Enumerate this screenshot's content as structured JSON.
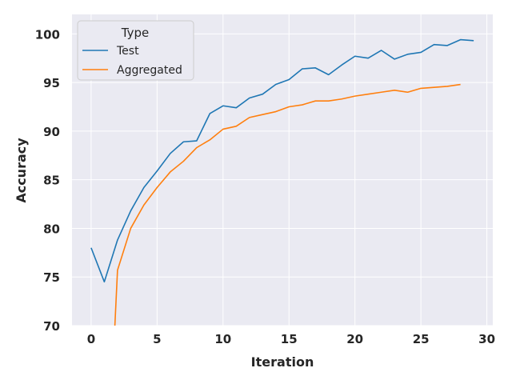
{
  "chart_data": {
    "type": "line",
    "xlabel": "Iteration",
    "ylabel": "Accuracy",
    "xlim": [
      -1.45,
      30.45
    ],
    "ylim": [
      70,
      102
    ],
    "xticks": [
      0,
      5,
      10,
      15,
      20,
      25,
      30
    ],
    "yticks": [
      70,
      75,
      80,
      85,
      90,
      95,
      100
    ],
    "grid": true,
    "legend": {
      "title": "Type",
      "placement": "top-left"
    },
    "series": [
      {
        "name": "Test",
        "color": "#1f77b4",
        "x": [
          0,
          1,
          2,
          3,
          4,
          5,
          6,
          7,
          8,
          9,
          10,
          11,
          12,
          13,
          14,
          15,
          16,
          17,
          18,
          19,
          20,
          21,
          22,
          23,
          24,
          25,
          26,
          27,
          28,
          29
        ],
        "values": [
          78.0,
          74.5,
          78.8,
          81.8,
          84.2,
          85.9,
          87.7,
          88.9,
          89.0,
          91.8,
          92.6,
          92.4,
          93.4,
          93.8,
          94.8,
          95.3,
          96.4,
          96.5,
          95.8,
          96.8,
          97.7,
          97.5,
          98.3,
          97.4,
          97.9,
          98.1,
          98.9,
          98.8,
          99.4,
          99.3
        ]
      },
      {
        "name": "Aggregated",
        "color": "#ff7f0e",
        "x": [
          1.8,
          2,
          3,
          4,
          5,
          6,
          7,
          8,
          9,
          10,
          11,
          12,
          13,
          14,
          15,
          16,
          17,
          18,
          19,
          20,
          21,
          22,
          23,
          24,
          25,
          26,
          27,
          28
        ],
        "values": [
          70.0,
          75.7,
          80.0,
          82.4,
          84.2,
          85.8,
          86.9,
          88.3,
          89.1,
          90.2,
          90.5,
          91.4,
          91.7,
          92.0,
          92.5,
          92.7,
          93.1,
          93.1,
          93.3,
          93.6,
          93.8,
          94.0,
          94.2,
          94.0,
          94.4,
          94.5,
          94.6,
          94.8
        ]
      }
    ]
  }
}
